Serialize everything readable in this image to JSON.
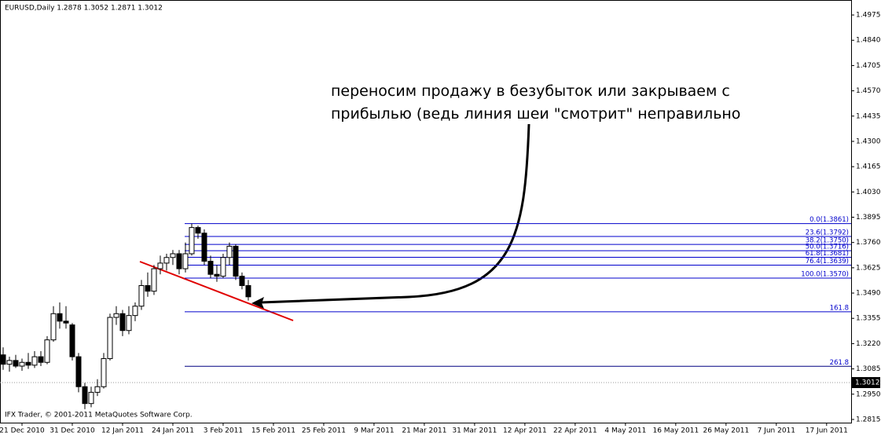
{
  "chart_data": {
    "type": "candlestick",
    "title": "EURUSD,Daily  1.2878 1.3052 1.2871 1.3012",
    "footer": "IFX Trader, © 2001-2011 MetaQuotes Software Corp.",
    "annotation": [
      "переносим продажу в безубыток или закрываем с",
      "прибылью (ведь линия шеи \"смотрит\" неправильно"
    ],
    "open": [
      1.316,
      1.311,
      1.313,
      1.31,
      1.312,
      1.3105,
      1.315,
      1.312,
      1.324,
      1.338,
      1.334,
      1.332,
      1.315,
      1.299,
      1.29,
      1.296,
      1.299,
      1.314,
      1.336,
      1.338,
      1.329,
      1.337,
      1.342,
      1.353,
      1.35,
      1.362,
      1.365,
      1.368,
      1.37,
      1.362,
      1.37,
      1.384,
      1.381,
      1.366,
      1.359,
      1.358,
      1.368,
      1.374,
      1.358,
      1.353
    ],
    "high": [
      1.32,
      1.315,
      1.316,
      1.314,
      1.317,
      1.318,
      1.318,
      1.326,
      1.342,
      1.344,
      1.342,
      1.333,
      1.317,
      1.301,
      1.299,
      1.303,
      1.317,
      1.338,
      1.342,
      1.34,
      1.342,
      1.344,
      1.356,
      1.36,
      1.364,
      1.369,
      1.37,
      1.372,
      1.372,
      1.376,
      1.3861,
      1.385,
      1.383,
      1.369,
      1.364,
      1.37,
      1.376,
      1.375,
      1.36,
      1.356
    ],
    "low": [
      1.308,
      1.307,
      1.309,
      1.3075,
      1.3085,
      1.309,
      1.31,
      1.311,
      1.323,
      1.33,
      1.33,
      1.313,
      1.296,
      1.287,
      1.288,
      1.294,
      1.298,
      1.313,
      1.332,
      1.326,
      1.327,
      1.334,
      1.34,
      1.347,
      1.348,
      1.359,
      1.361,
      1.364,
      1.359,
      1.36,
      1.369,
      1.378,
      1.364,
      1.357,
      1.355,
      1.357,
      1.364,
      1.356,
      1.351,
      1.345
    ],
    "close": [
      1.311,
      1.313,
      1.31,
      1.312,
      1.3105,
      1.315,
      1.312,
      1.324,
      1.338,
      1.334,
      1.333,
      1.315,
      1.299,
      1.29,
      1.296,
      1.299,
      1.314,
      1.336,
      1.338,
      1.329,
      1.337,
      1.342,
      1.353,
      1.35,
      1.362,
      1.365,
      1.368,
      1.37,
      1.362,
      1.37,
      1.384,
      1.381,
      1.366,
      1.359,
      1.358,
      1.368,
      1.374,
      1.358,
      1.353,
      1.347
    ],
    "xlim": [
      -0.5,
      134.9
    ],
    "xticks": [
      {
        "value": 3,
        "label": "21 Dec 2010"
      },
      {
        "value": 11,
        "label": "31 Dec 2010"
      },
      {
        "value": 19,
        "label": "12 Jan 2011"
      },
      {
        "value": 27,
        "label": "24 Jan 2011"
      },
      {
        "value": 35,
        "label": "3 Feb 2011"
      },
      {
        "value": 43,
        "label": "15 Feb 2011"
      },
      {
        "value": 51,
        "label": "25 Feb 2011"
      },
      {
        "value": 59,
        "label": "9 Mar 2011"
      },
      {
        "value": 67,
        "label": "21 Mar 2011"
      },
      {
        "value": 75,
        "label": "31 Mar 2011"
      },
      {
        "value": 83,
        "label": "12 Apr 2011"
      },
      {
        "value": 91,
        "label": "22 Apr 2011"
      },
      {
        "value": 99,
        "label": "4 May 2011"
      },
      {
        "value": 107,
        "label": "16 May 2011"
      },
      {
        "value": 115,
        "label": "26 May 2011"
      },
      {
        "value": 123,
        "label": "7 Jun 2011"
      },
      {
        "value": 131,
        "label": "17 Jun 2011"
      }
    ],
    "ylim": [
      1.2798,
      1.5055
    ],
    "yticks": [
      1.2815,
      {
        "value": 1.295,
        "label": "1.2950"
      },
      1.3085,
      {
        "value": 1.322,
        "label": "1.3220"
      },
      1.3355,
      {
        "value": 1.349,
        "label": "1.3490"
      },
      1.3625,
      {
        "value": 1.376,
        "label": "1.3760"
      },
      1.3895,
      {
        "value": 1.403,
        "label": "1.4030"
      },
      1.4165,
      {
        "value": 1.43,
        "label": "1.4300"
      },
      1.4435,
      {
        "value": 1.457,
        "label": "1.4570"
      },
      1.4705,
      {
        "value": 1.484,
        "label": "1.4840"
      },
      1.4975
    ],
    "current_price": 1.3012,
    "fib_levels": [
      {
        "price": 1.3861,
        "label": "0.0(1.3861)"
      },
      {
        "price": 1.3792,
        "label": "23.6(1.3792)"
      },
      {
        "price": 1.375,
        "label": "38.2(1.3750)"
      },
      {
        "price": 1.3716,
        "label": "50.0(1.3716)"
      },
      {
        "price": 1.3681,
        "label": "61.8(1.3681)"
      },
      {
        "price": 1.3639,
        "label": "76.4(1.3639)"
      },
      {
        "price": 1.357,
        "label": "100.0(1.3570)"
      },
      {
        "price": 1.339,
        "label": "161.8"
      },
      {
        "price": 1.3099,
        "label": "261.8"
      }
    ],
    "fib_colors": [
      "#0000cc",
      "#0000cc",
      "#0000cc",
      "#0000cc",
      "#0000cc",
      "#0000cc",
      "#0000cc",
      "#0000cc",
      "#000080"
    ]
  }
}
